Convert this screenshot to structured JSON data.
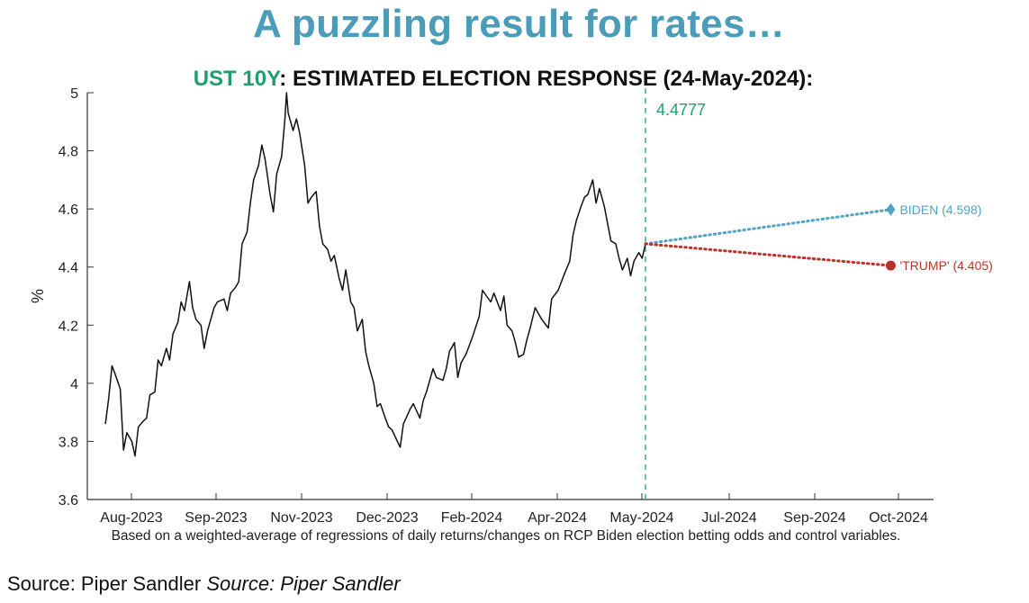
{
  "headline": "A puzzling result for rates…",
  "chart_data": {
    "type": "line",
    "title_tag": "UST 10Y",
    "title_rest": ": ESTIMATED ELECTION RESPONSE (24-May-2024):",
    "ylabel": "%",
    "xlabel": "",
    "ylim": [
      3.6,
      5.0
    ],
    "yticks": [
      "3.6",
      "3.8",
      "4",
      "4.2",
      "4.4",
      "4.6",
      "4.8",
      "5"
    ],
    "xticks": [
      "Aug-2023",
      "Sep-2023",
      "Nov-2023",
      "Dec-2023",
      "Feb-2024",
      "Apr-2024",
      "May-2024",
      "Jul-2024",
      "Sep-2024",
      "Oct-2024"
    ],
    "grid": false,
    "reference_line": {
      "label": "4.4777",
      "value": 4.4777,
      "color": "#3fb88a"
    },
    "series": [
      {
        "color": "#111111",
        "x": [
          "2023-07-01",
          "2023-07-03",
          "2023-07-05",
          "2023-07-07",
          "2023-07-10",
          "2023-07-12",
          "2023-07-14",
          "2023-07-17",
          "2023-07-19",
          "2023-07-21",
          "2023-07-24",
          "2023-07-26",
          "2023-07-28",
          "2023-07-31",
          "2023-08-02",
          "2023-08-04",
          "2023-08-07",
          "2023-08-09",
          "2023-08-11",
          "2023-08-14",
          "2023-08-16",
          "2023-08-18",
          "2023-08-21",
          "2023-08-23",
          "2023-08-25",
          "2023-08-28",
          "2023-08-30",
          "2023-09-01",
          "2023-09-05",
          "2023-09-07",
          "2023-09-11",
          "2023-09-13",
          "2023-09-15",
          "2023-09-18",
          "2023-09-20",
          "2023-09-22",
          "2023-09-25",
          "2023-09-27",
          "2023-09-29",
          "2023-10-02",
          "2023-10-04",
          "2023-10-06",
          "2023-10-09",
          "2023-10-11",
          "2023-10-13",
          "2023-10-16",
          "2023-10-18",
          "2023-10-19",
          "2023-10-20",
          "2023-10-23",
          "2023-10-25",
          "2023-10-27",
          "2023-10-30",
          "2023-11-01",
          "2023-11-03",
          "2023-11-06",
          "2023-11-08",
          "2023-11-10",
          "2023-11-13",
          "2023-11-15",
          "2023-11-17",
          "2023-11-20",
          "2023-11-22",
          "2023-11-24",
          "2023-11-27",
          "2023-11-29",
          "2023-12-01",
          "2023-12-04",
          "2023-12-06",
          "2023-12-08",
          "2023-12-11",
          "2023-12-13",
          "2023-12-15",
          "2023-12-18",
          "2023-12-20",
          "2023-12-22",
          "2023-12-27",
          "2023-12-29",
          "2024-01-02",
          "2024-01-04",
          "2024-01-08",
          "2024-01-10",
          "2024-01-12",
          "2024-01-16",
          "2024-01-18",
          "2024-01-22",
          "2024-01-24",
          "2024-01-26",
          "2024-01-29",
          "2024-01-31",
          "2024-02-02",
          "2024-02-05",
          "2024-02-07",
          "2024-02-09",
          "2024-02-13",
          "2024-02-15",
          "2024-02-20",
          "2024-02-22",
          "2024-02-26",
          "2024-02-28",
          "2024-03-01",
          "2024-03-04",
          "2024-03-06",
          "2024-03-08",
          "2024-03-11",
          "2024-03-13",
          "2024-03-15",
          "2024-03-18",
          "2024-03-20",
          "2024-03-22",
          "2024-03-26",
          "2024-03-28",
          "2024-04-01",
          "2024-04-03",
          "2024-04-05",
          "2024-04-08",
          "2024-04-10",
          "2024-04-12",
          "2024-04-15",
          "2024-04-17",
          "2024-04-19",
          "2024-04-22",
          "2024-04-24",
          "2024-04-26",
          "2024-04-29",
          "2024-05-01",
          "2024-05-03",
          "2024-05-06",
          "2024-05-08",
          "2024-05-10",
          "2024-05-13",
          "2024-05-15",
          "2024-05-17",
          "2024-05-20",
          "2024-05-22",
          "2024-05-24"
        ],
        "values": [
          3.86,
          3.95,
          4.06,
          4.03,
          3.98,
          3.77,
          3.83,
          3.8,
          3.75,
          3.85,
          3.87,
          3.88,
          3.96,
          3.97,
          4.08,
          4.06,
          4.12,
          4.08,
          4.17,
          4.21,
          4.28,
          4.25,
          4.35,
          4.26,
          4.22,
          4.2,
          4.12,
          4.18,
          4.26,
          4.28,
          4.29,
          4.25,
          4.31,
          4.33,
          4.35,
          4.48,
          4.52,
          4.62,
          4.7,
          4.75,
          4.82,
          4.77,
          4.65,
          4.59,
          4.72,
          4.78,
          4.91,
          5.0,
          4.93,
          4.87,
          4.91,
          4.86,
          4.75,
          4.62,
          4.64,
          4.66,
          4.54,
          4.48,
          4.46,
          4.42,
          4.44,
          4.36,
          4.32,
          4.39,
          4.28,
          4.26,
          4.18,
          4.22,
          4.11,
          4.06,
          4.0,
          3.92,
          3.93,
          3.88,
          3.85,
          3.84,
          3.78,
          3.86,
          3.91,
          3.93,
          3.88,
          3.94,
          3.97,
          4.05,
          4.02,
          4.01,
          4.05,
          4.11,
          4.14,
          4.02,
          4.07,
          4.1,
          4.13,
          4.16,
          4.23,
          4.32,
          4.28,
          4.31,
          4.25,
          4.3,
          4.2,
          4.18,
          4.14,
          4.09,
          4.1,
          4.15,
          4.19,
          4.26,
          4.24,
          4.22,
          4.19,
          4.29,
          4.32,
          4.35,
          4.38,
          4.42,
          4.51,
          4.56,
          4.61,
          4.64,
          4.65,
          4.7,
          4.62,
          4.67,
          4.61,
          4.55,
          4.49,
          4.48,
          4.43,
          4.39,
          4.43,
          4.37,
          4.42,
          4.45,
          4.43,
          4.48
        ]
      }
    ],
    "projections": [
      {
        "name": "BIDEN",
        "label": "BIDEN (4.598)",
        "value": 4.598,
        "x": "2024-10-20",
        "marker": "diamond",
        "color": "#4fa3c7"
      },
      {
        "name": "'TRUMP'",
        "label": "'TRUMP' (4.405)",
        "value": 4.405,
        "x": "2024-10-20",
        "marker": "circle",
        "color": "#b8332a"
      }
    ]
  },
  "footnote": "Based on a weighted-average of regressions of daily returns/changes on RCP Biden election betting odds and control variables.",
  "source": {
    "plain": "Source: Piper Sandler",
    "italic": "Source: Piper Sandler"
  }
}
